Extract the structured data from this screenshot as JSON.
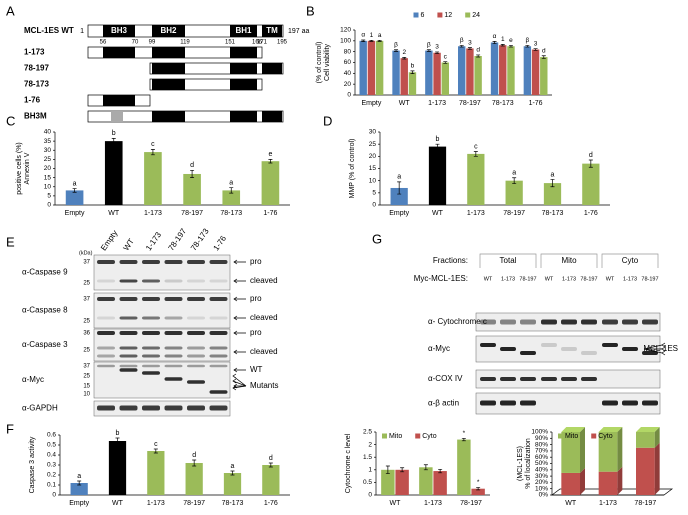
{
  "diagram": {
    "panel_label": "A",
    "name": "MCL-1ES WT",
    "start": 1,
    "length_label": "197 aa",
    "domains": [
      {
        "label": "BH3",
        "start": 56,
        "end": 70
      },
      {
        "label": "BH2",
        "start": 99,
        "end": 119
      },
      {
        "label": "BH1",
        "start": 151,
        "end": 166
      },
      {
        "label": "TM",
        "start": 171,
        "end": 195
      }
    ],
    "constructs": [
      "1-173",
      "78-197",
      "78-173",
      "1-76",
      "BH3M"
    ]
  },
  "blots": [
    {
      "panel_label": "E",
      "kda_label": "(kDa)",
      "lanes": [
        "Empty",
        "WT",
        "1-173",
        "78-197",
        "78-173",
        "1-76"
      ],
      "rows": [
        {
          "antibody": "α-Caspase 9",
          "markers": [
            37,
            25
          ],
          "arrows": [
            "pro",
            "cleaved"
          ]
        },
        {
          "antibody": "α-Caspase 8",
          "markers": [
            37,
            25
          ],
          "arrows": [
            "pro",
            "cleaved"
          ]
        },
        {
          "antibody": "α-Caspase 3",
          "markers": [
            36,
            25
          ],
          "arrows": [
            "pro",
            "cleaved"
          ]
        },
        {
          "antibody": "α-Myc",
          "markers": [
            37,
            25,
            15,
            10
          ],
          "arrows": [
            "WT",
            "Mutants"
          ]
        },
        {
          "antibody": "α-GAPDH",
          "markers": [],
          "arrows": []
        }
      ]
    },
    {
      "panel_label": "G",
      "fractions_label": "Fractions:",
      "fractions": [
        "Total",
        "Mito",
        "Cyto"
      ],
      "construct_label": "Myc-MCL-1ES:",
      "lanes": [
        "WT",
        "1-173",
        "78-197",
        "WT",
        "1-173",
        "78-197",
        "WT",
        "1-173",
        "78-197"
      ],
      "rows": [
        {
          "antibody": "α- Cytochrome c"
        },
        {
          "antibody": "α-Myc"
        },
        {
          "antibody": "α-COX IV"
        },
        {
          "antibody": "α-β actin"
        }
      ],
      "side_label": "MCL-1ES"
    }
  ],
  "chart_data": [
    {
      "type": "grouped_bar",
      "panel_label": "B",
      "ylabel": [
        "Cell viability",
        "(% of control)"
      ],
      "categories": [
        "Empty",
        "WT",
        "1-173",
        "78-197",
        "78-173",
        "1-76"
      ],
      "ylim": [
        0,
        120
      ],
      "yticks": [
        0,
        20,
        40,
        60,
        80,
        100,
        120
      ],
      "legend": "top",
      "series": [
        {
          "name": "6",
          "color": "#4f81bd",
          "values": [
            100,
            82,
            82,
            90,
            97,
            90
          ],
          "errors": [
            1.5,
            1.5,
            1.5,
            1.5,
            2,
            1.5
          ],
          "annotations": [
            "α",
            "β",
            "β",
            "β",
            "α",
            "β"
          ]
        },
        {
          "name": "12",
          "color": "#c0504d",
          "values": [
            100,
            68,
            78,
            86,
            92,
            84
          ],
          "errors": [
            1,
            1.5,
            1.5,
            1.5,
            1.5,
            1.5
          ],
          "annotations": [
            "1",
            "2",
            "3",
            "3",
            "1",
            "3"
          ]
        },
        {
          "name": "24",
          "color": "#9bbb59",
          "values": [
            100,
            42,
            60,
            72,
            90,
            70
          ],
          "errors": [
            1,
            2.5,
            1.5,
            2,
            1.5,
            2.5
          ],
          "annotations": [
            "a",
            "b",
            "c",
            "d",
            "e",
            "d"
          ]
        }
      ]
    },
    {
      "type": "bar",
      "panel_label": "C",
      "ylabel": [
        "Annexin V",
        "positive cells (%)"
      ],
      "categories": [
        "Empty",
        "WT",
        "1-173",
        "78-197",
        "78-173",
        "1-76"
      ],
      "values": [
        8,
        35,
        29,
        17,
        8,
        24
      ],
      "errors": [
        1,
        1.5,
        1.5,
        2,
        1.5,
        1
      ],
      "annotations": [
        "a",
        "b",
        "c",
        "d",
        "a",
        "e"
      ],
      "colors": [
        "#4f81bd",
        "#000000",
        "#9bbb59",
        "#9bbb59",
        "#9bbb59",
        "#9bbb59"
      ],
      "ylim": [
        0,
        40
      ],
      "yticks": [
        0,
        5,
        10,
        15,
        20,
        25,
        30,
        35,
        40
      ]
    },
    {
      "type": "bar",
      "panel_label": "D",
      "ylabel": [
        "MMP (% of control)"
      ],
      "categories": [
        "Empty",
        "WT",
        "1-173",
        "78-197",
        "78-173",
        "1-76"
      ],
      "values": [
        7,
        24,
        21,
        10,
        9,
        17
      ],
      "errors": [
        2.5,
        1,
        1,
        1.2,
        1.5,
        1.5
      ],
      "annotations": [
        "a",
        "b",
        "c",
        "a",
        "a",
        "d"
      ],
      "colors": [
        "#4f81bd",
        "#000000",
        "#9bbb59",
        "#9bbb59",
        "#9bbb59",
        "#9bbb59"
      ],
      "ylim": [
        0,
        30
      ],
      "yticks": [
        0,
        5,
        10,
        15,
        20,
        25,
        30
      ]
    },
    {
      "type": "bar",
      "panel_label": "F",
      "ylabel": [
        "Caspase 3 activity"
      ],
      "categories": [
        "Empty",
        "WT",
        "1-173",
        "78-197",
        "78-173",
        "1-76"
      ],
      "values": [
        0.12,
        0.54,
        0.44,
        0.32,
        0.22,
        0.3
      ],
      "errors": [
        0.02,
        0.03,
        0.02,
        0.03,
        0.02,
        0.02
      ],
      "annotations": [
        "a",
        "b",
        "c",
        "d",
        "a",
        "d"
      ],
      "colors": [
        "#4f81bd",
        "#000000",
        "#9bbb59",
        "#9bbb59",
        "#9bbb59",
        "#9bbb59"
      ],
      "ylim": [
        0,
        0.6
      ],
      "yticks": [
        0,
        0.1,
        0.2,
        0.3,
        0.4,
        0.5,
        0.6
      ]
    },
    {
      "type": "grouped_bar",
      "ylabel": [
        "Cytochrome c level"
      ],
      "categories": [
        "WT",
        "1-173",
        "78-197"
      ],
      "ylim": [
        0,
        2.5
      ],
      "yticks": [
        0,
        0.5,
        1,
        1.5,
        2,
        2.5
      ],
      "legend": "upper left",
      "series": [
        {
          "name": "Mito",
          "color": "#9bbb59",
          "values": [
            1.0,
            1.1,
            2.2
          ],
          "errors": [
            0.15,
            0.1,
            0.05
          ],
          "annotations": [
            null,
            null,
            "*"
          ]
        },
        {
          "name": "Cyto",
          "color": "#c0504d",
          "values": [
            1.0,
            0.95,
            0.25
          ],
          "errors": [
            0.08,
            0.07,
            0.05
          ],
          "annotations": [
            null,
            null,
            "*"
          ]
        }
      ]
    },
    {
      "type": "stacked_bar",
      "ylabel": [
        "% of localization",
        "(MCL-1ES)"
      ],
      "categories": [
        "WT",
        "1-173",
        "78-197"
      ],
      "ylim": [
        0,
        100
      ],
      "yticks": [
        {
          "value": 0,
          "label": "0%"
        },
        {
          "value": 10,
          "label": "10%"
        },
        {
          "value": 20,
          "label": "20%"
        },
        {
          "value": 30,
          "label": "30%"
        },
        {
          "value": 40,
          "label": "40%"
        },
        {
          "value": 50,
          "label": "50%"
        },
        {
          "value": 60,
          "label": "60%"
        },
        {
          "value": 70,
          "label": "70%"
        },
        {
          "value": 80,
          "label": "80%"
        },
        {
          "value": 90,
          "label": "90%"
        },
        {
          "value": 100,
          "label": "100%"
        }
      ],
      "legend": "upper left",
      "series": [
        {
          "name": "Mito",
          "color": "#9bbb59",
          "values": [
            65,
            63,
            25
          ]
        },
        {
          "name": "Cyto",
          "color": "#c0504d",
          "values": [
            35,
            37,
            75
          ]
        }
      ]
    }
  ]
}
